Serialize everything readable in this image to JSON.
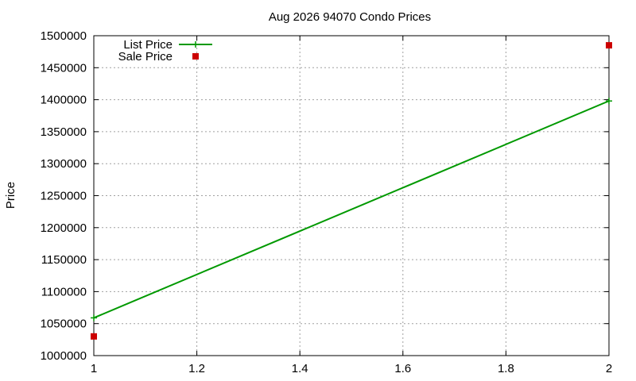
{
  "chart_data": {
    "type": "line",
    "title": "Aug 2026 94070 Condo Prices",
    "xlabel": "",
    "ylabel": "Price",
    "xlim": [
      1,
      2
    ],
    "ylim": [
      1000000,
      1500000
    ],
    "x_ticks": [
      "1",
      "1.2",
      "1.4",
      "1.6",
      "1.8",
      "2"
    ],
    "y_ticks": [
      "1000000",
      "1050000",
      "1100000",
      "1150000",
      "1200000",
      "1250000",
      "1300000",
      "1350000",
      "1400000",
      "1450000",
      "1500000"
    ],
    "grid": true,
    "legend_position": "top-left",
    "series": [
      {
        "name": "List Price",
        "style": "linespoints",
        "marker": "plus",
        "color": "#009900",
        "x": [
          1,
          2
        ],
        "y": [
          1059000,
          1398000
        ]
      },
      {
        "name": "Sale Price",
        "style": "points",
        "marker": "square",
        "color": "#cc0000",
        "x": [
          1,
          2
        ],
        "y": [
          1030000,
          1485000
        ]
      }
    ]
  }
}
